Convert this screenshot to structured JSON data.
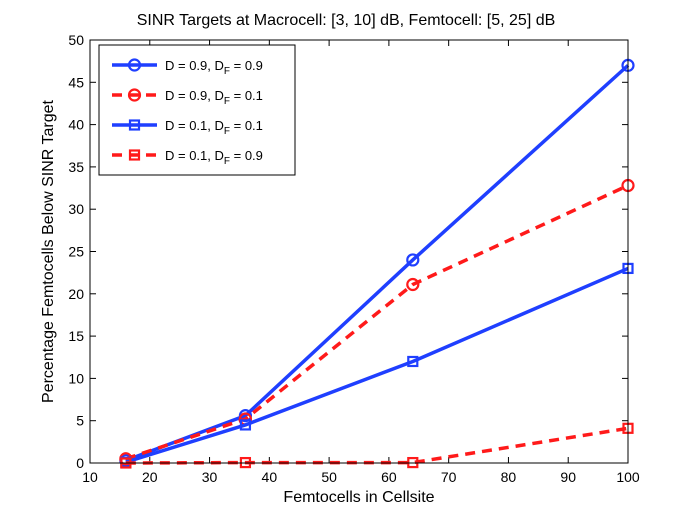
{
  "chart_data": {
    "type": "line",
    "title": "SINR Targets at Macrocell: [3, 10] dB, Femtocell: [5, 25] dB",
    "xlabel": "Femtocells in Cellsite",
    "ylabel": "Percentage Femtocells Below SINR Target",
    "xlim": [
      10,
      100
    ],
    "ylim": [
      0,
      50
    ],
    "xticks": [
      10,
      20,
      30,
      40,
      50,
      60,
      70,
      80,
      90,
      100
    ],
    "yticks": [
      0,
      5,
      10,
      15,
      20,
      25,
      30,
      35,
      40,
      45,
      50
    ],
    "grid": false,
    "legend_position": "top-left",
    "x": [
      16,
      36,
      64,
      100
    ],
    "series": [
      {
        "name": "D = 0.9, D_F = 0.9",
        "legend_main": "D = 0.9, D",
        "legend_sub": "F",
        "legend_tail": " = 0.9",
        "color": "#1f3fff",
        "dash": "solid",
        "marker": "circle",
        "values": [
          0.3,
          5.6,
          24.0,
          47.0
        ]
      },
      {
        "name": "D = 0.9, D_F = 0.1",
        "legend_main": "D = 0.9, D",
        "legend_sub": "F",
        "legend_tail": " = 0.1",
        "color": "#ff1a1a",
        "dash": "dashed",
        "marker": "circle",
        "values": [
          0.5,
          5.2,
          21.1,
          32.8
        ]
      },
      {
        "name": "D = 0.1, D_F = 0.1",
        "legend_main": "D = 0.1, D",
        "legend_sub": "F",
        "legend_tail": " = 0.1",
        "color": "#1f3fff",
        "dash": "solid",
        "marker": "square",
        "values": [
          0.1,
          4.5,
          12.0,
          23.0
        ]
      },
      {
        "name": "D = 0.1, D_F = 0.9",
        "legend_main": "D = 0.1, D",
        "legend_sub": "F",
        "legend_tail": " = 0.9",
        "color": "#ff1a1a",
        "dash": "dashed",
        "marker": "square",
        "values": [
          0.0,
          0.05,
          0.05,
          4.1
        ]
      }
    ]
  }
}
